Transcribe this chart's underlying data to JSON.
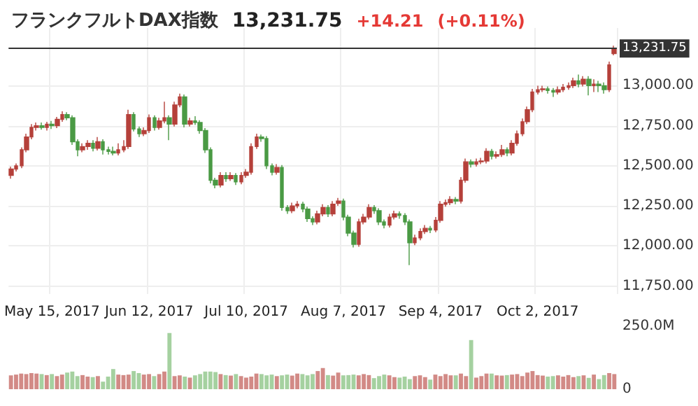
{
  "chart_data": [
    {
      "type": "candlestick",
      "title": "フランクフルトDAX指数",
      "annotations": [
        "13,231.75",
        "+14.21",
        "(+0.11%)"
      ],
      "categories": [
        null,
        null,
        null,
        null,
        null,
        null,
        null,
        null,
        "May 15, 2017",
        null,
        null,
        null,
        null,
        null,
        null,
        null,
        null,
        null,
        null,
        null,
        null,
        null,
        null,
        null,
        null,
        null,
        null,
        "Jun 12, 2017",
        null,
        null,
        null,
        null,
        null,
        null,
        null,
        null,
        null,
        null,
        null,
        null,
        null,
        null,
        null,
        null,
        null,
        null,
        "Jul 10, 2017",
        null,
        null,
        null,
        null,
        null,
        null,
        null,
        null,
        null,
        null,
        null,
        null,
        null,
        null,
        null,
        null,
        null,
        null,
        "Aug 7, 2017",
        null,
        null,
        null,
        null,
        null,
        null,
        null,
        null,
        null,
        null,
        null,
        null,
        null,
        null,
        null,
        null,
        null,
        null,
        "Sep 4, 2017",
        null,
        null,
        null,
        null,
        null,
        null,
        null,
        null,
        null,
        null,
        null,
        null,
        null,
        null,
        null,
        null,
        null,
        null,
        "Oct 2, 2017",
        null,
        null,
        null,
        null,
        null,
        null,
        null,
        null,
        null,
        null,
        null,
        null,
        null,
        null,
        null
      ],
      "ohlc": [
        [
          12440,
          12495,
          12420,
          12480
        ],
        [
          12480,
          12515,
          12465,
          12500
        ],
        [
          12500,
          12615,
          12485,
          12600
        ],
        [
          12600,
          12700,
          12585,
          12680
        ],
        [
          12680,
          12760,
          12665,
          12740
        ],
        [
          12740,
          12770,
          12720,
          12750
        ],
        [
          12750,
          12770,
          12725,
          12740
        ],
        [
          12740,
          12775,
          12720,
          12760
        ],
        [
          12760,
          12780,
          12730,
          12750
        ],
        [
          12750,
          12805,
          12735,
          12790
        ],
        [
          12790,
          12840,
          12775,
          12820
        ],
        [
          12820,
          12835,
          12785,
          12800
        ],
        [
          12800,
          12815,
          12630,
          12650
        ],
        [
          12650,
          12665,
          12560,
          12600
        ],
        [
          12600,
          12640,
          12585,
          12620
        ],
        [
          12620,
          12660,
          12600,
          12640
        ],
        [
          12640,
          12660,
          12590,
          12610
        ],
        [
          12610,
          12680,
          12595,
          12650
        ],
        [
          12650,
          12665,
          12570,
          12600
        ],
        [
          12600,
          12620,
          12570,
          12590
        ],
        [
          12590,
          12620,
          12565,
          12580
        ],
        [
          12580,
          12640,
          12565,
          12600
        ],
        [
          12600,
          12660,
          12585,
          12620
        ],
        [
          12620,
          12850,
          12605,
          12820
        ],
        [
          12820,
          12835,
          12715,
          12730
        ],
        [
          12730,
          12745,
          12680,
          12700
        ],
        [
          12700,
          12740,
          12685,
          12720
        ],
        [
          12720,
          12820,
          12705,
          12800
        ],
        [
          12800,
          12815,
          12720,
          12740
        ],
        [
          12740,
          12800,
          12725,
          12780
        ],
        [
          12780,
          12900,
          12765,
          12800
        ],
        [
          12800,
          12815,
          12660,
          12760
        ],
        [
          12760,
          12900,
          12745,
          12880
        ],
        [
          12880,
          12950,
          12865,
          12930
        ],
        [
          12930,
          12945,
          12740,
          12760
        ],
        [
          12760,
          12800,
          12745,
          12780
        ],
        [
          12780,
          12810,
          12755,
          12770
        ],
        [
          12770,
          12785,
          12700,
          12720
        ],
        [
          12720,
          12735,
          12580,
          12600
        ],
        [
          12600,
          12615,
          12390,
          12410
        ],
        [
          12410,
          12425,
          12360,
          12380
        ],
        [
          12380,
          12460,
          12365,
          12440
        ],
        [
          12440,
          12460,
          12400,
          12420
        ],
        [
          12420,
          12460,
          12405,
          12440
        ],
        [
          12440,
          12455,
          12380,
          12400
        ],
        [
          12400,
          12460,
          12385,
          12440
        ],
        [
          12440,
          12480,
          12425,
          12460
        ],
        [
          12460,
          12640,
          12445,
          12620
        ],
        [
          12620,
          12700,
          12605,
          12680
        ],
        [
          12680,
          12695,
          12650,
          12670
        ],
        [
          12670,
          12685,
          12480,
          12500
        ],
        [
          12500,
          12515,
          12440,
          12460
        ],
        [
          12460,
          12510,
          12445,
          12490
        ],
        [
          12490,
          12505,
          12220,
          12240
        ],
        [
          12240,
          12255,
          12200,
          12220
        ],
        [
          12220,
          12270,
          12205,
          12250
        ],
        [
          12250,
          12280,
          12235,
          12260
        ],
        [
          12260,
          12275,
          12210,
          12230
        ],
        [
          12230,
          12245,
          12150,
          12170
        ],
        [
          12170,
          12185,
          12130,
          12150
        ],
        [
          12150,
          12220,
          12135,
          12200
        ],
        [
          12200,
          12260,
          12185,
          12240
        ],
        [
          12240,
          12255,
          12180,
          12200
        ],
        [
          12200,
          12280,
          12185,
          12260
        ],
        [
          12265,
          12300,
          12250,
          12280
        ],
        [
          12280,
          12295,
          12160,
          12180
        ],
        [
          12180,
          12195,
          12060,
          12080
        ],
        [
          12080,
          12095,
          11990,
          12010
        ],
        [
          12010,
          12170,
          11995,
          12150
        ],
        [
          12150,
          12200,
          12135,
          12180
        ],
        [
          12180,
          12260,
          12165,
          12240
        ],
        [
          12240,
          12255,
          12200,
          12220
        ],
        [
          12220,
          12235,
          12130,
          12150
        ],
        [
          12150,
          12165,
          12110,
          12130
        ],
        [
          12130,
          12200,
          12115,
          12180
        ],
        [
          12180,
          12220,
          12165,
          12200
        ],
        [
          12200,
          12215,
          12170,
          12190
        ],
        [
          12190,
          12205,
          12130,
          12150
        ],
        [
          12150,
          12165,
          11880,
          12020
        ],
        [
          12020,
          12070,
          12005,
          12050
        ],
        [
          12050,
          12110,
          12035,
          12090
        ],
        [
          12090,
          12130,
          12075,
          12110
        ],
        [
          12110,
          12125,
          12080,
          12100
        ],
        [
          12100,
          12180,
          12085,
          12160
        ],
        [
          12160,
          12280,
          12145,
          12260
        ],
        [
          12260,
          12290,
          12245,
          12270
        ],
        [
          12270,
          12310,
          12255,
          12290
        ],
        [
          12290,
          12305,
          12260,
          12280
        ],
        [
          12280,
          12430,
          12265,
          12410
        ],
        [
          12410,
          12545,
          12395,
          12525
        ],
        [
          12525,
          12540,
          12490,
          12510
        ],
        [
          12510,
          12545,
          12495,
          12525
        ],
        [
          12525,
          12550,
          12510,
          12530
        ],
        [
          12530,
          12610,
          12515,
          12590
        ],
        [
          12590,
          12605,
          12540,
          12560
        ],
        [
          12560,
          12590,
          12545,
          12570
        ],
        [
          12570,
          12630,
          12555,
          12600
        ],
        [
          12600,
          12615,
          12560,
          12580
        ],
        [
          12580,
          12660,
          12565,
          12640
        ],
        [
          12640,
          12720,
          12625,
          12700
        ],
        [
          12700,
          12795,
          12685,
          12775
        ],
        [
          12775,
          12870,
          12760,
          12850
        ],
        [
          12850,
          12980,
          12835,
          12960
        ],
        [
          12960,
          13000,
          12945,
          12975
        ],
        [
          12975,
          13000,
          12960,
          12980
        ],
        [
          12980,
          12995,
          12950,
          12970
        ],
        [
          12970,
          12985,
          12930,
          12960
        ],
        [
          12960,
          12995,
          12945,
          12975
        ],
        [
          12975,
          13010,
          12960,
          12990
        ],
        [
          12990,
          13020,
          12975,
          13000
        ],
        [
          13000,
          13050,
          12985,
          13030
        ],
        [
          13030,
          13070,
          12990,
          13010
        ],
        [
          13010,
          13060,
          12995,
          13040
        ],
        [
          13040,
          13060,
          12940,
          13000
        ],
        [
          13000,
          13040,
          12960,
          13010
        ],
        [
          13010,
          13030,
          12960,
          13000
        ],
        [
          13000,
          13020,
          12950,
          12975
        ],
        [
          12975,
          13150,
          12960,
          13130
        ],
        [
          13200,
          13250,
          13190,
          13231.75
        ]
      ],
      "colors": [
        "#b5403a",
        "#b5403a",
        "#b5403a",
        "#b5403a",
        "#b5403a",
        "#b5403a",
        "#4a9a44",
        "#b5403a",
        "#4a9a44",
        "#b5403a",
        "#b5403a",
        "#4a9a44",
        "#4a9a44",
        "#4a9a44",
        "#b5403a",
        "#b5403a",
        "#4a9a44",
        "#b5403a",
        "#4a9a44",
        "#4a9a44",
        "#4a9a44",
        "#b5403a",
        "#b5403a",
        "#b5403a",
        "#4a9a44",
        "#4a9a44",
        "#b5403a",
        "#b5403a",
        "#4a9a44",
        "#b5403a",
        "#b5403a",
        "#4a9a44",
        "#b5403a",
        "#b5403a",
        "#4a9a44",
        "#b5403a",
        "#4a9a44",
        "#4a9a44",
        "#4a9a44",
        "#4a9a44",
        "#4a9a44",
        "#b5403a",
        "#4a9a44",
        "#b5403a",
        "#4a9a44",
        "#b5403a",
        "#b5403a",
        "#b5403a",
        "#b5403a",
        "#4a9a44",
        "#4a9a44",
        "#4a9a44",
        "#b5403a",
        "#4a9a44",
        "#4a9a44",
        "#b5403a",
        "#b5403a",
        "#4a9a44",
        "#4a9a44",
        "#4a9a44",
        "#b5403a",
        "#b5403a",
        "#4a9a44",
        "#b5403a",
        "#b5403a",
        "#4a9a44",
        "#4a9a44",
        "#4a9a44",
        "#b5403a",
        "#b5403a",
        "#b5403a",
        "#4a9a44",
        "#4a9a44",
        "#4a9a44",
        "#b5403a",
        "#b5403a",
        "#4a9a44",
        "#4a9a44",
        "#4a9a44",
        "#b5403a",
        "#b5403a",
        "#b5403a",
        "#4a9a44",
        "#b5403a",
        "#b5403a",
        "#b5403a",
        "#b5403a",
        "#4a9a44",
        "#b5403a",
        "#b5403a",
        "#4a9a44",
        "#b5403a",
        "#b5403a",
        "#b5403a",
        "#4a9a44",
        "#b5403a",
        "#b5403a",
        "#4a9a44",
        "#b5403a",
        "#b5403a",
        "#b5403a",
        "#b5403a",
        "#b5403a",
        "#b5403a",
        "#b5403a",
        "#4a9a44",
        "#4a9a44",
        "#b5403a",
        "#b5403a",
        "#b5403a",
        "#b5403a",
        "#4a9a44",
        "#b5403a",
        "#4a9a44",
        "#b5403a",
        "#4a9a44",
        "#4a9a44",
        "#b5403a",
        "#b5403a"
      ],
      "ylim": [
        11700,
        13360
      ],
      "yticks": [
        {
          "value": 11750,
          "label": "11,750.00"
        },
        {
          "value": 12000,
          "label": "12,000.00"
        },
        {
          "value": 12250,
          "label": "12,250.00"
        },
        {
          "value": 12500,
          "label": "12,500.00"
        },
        {
          "value": 12750,
          "label": "12,750.00"
        },
        {
          "value": 13000,
          "label": "13,000.00"
        }
      ],
      "ref_lines": [
        {
          "axis": "y",
          "value": 13231.75,
          "label": "13,231.75",
          "color": "#333333"
        }
      ],
      "grid": true
    },
    {
      "type": "bar",
      "tick_labels": "y",
      "categories": [
        null,
        null,
        null,
        null,
        null,
        null,
        null,
        null,
        null,
        null,
        null,
        null,
        null,
        null,
        null,
        null,
        null,
        null,
        null,
        null,
        null,
        null,
        null,
        null,
        null,
        null,
        null,
        null,
        null,
        null,
        null,
        null,
        null,
        null,
        null,
        null,
        null,
        null,
        null,
        null,
        null,
        null,
        null,
        null,
        null,
        null,
        null,
        null,
        null,
        null,
        null,
        null,
        null,
        null,
        null,
        null,
        null,
        null,
        null,
        null,
        null,
        null,
        null,
        null,
        null,
        null,
        null,
        null,
        null,
        null,
        null,
        null,
        null,
        null,
        null,
        null,
        null,
        null,
        null,
        null,
        null,
        null,
        null,
        null,
        null,
        null,
        null,
        null,
        null,
        null,
        null,
        null,
        null,
        null,
        null,
        null,
        null,
        null,
        null,
        null,
        null,
        null,
        null,
        null,
        null,
        null,
        null,
        null,
        null,
        null,
        null,
        null,
        null,
        null,
        null,
        null,
        null,
        null,
        null
      ],
      "values": [
        55,
        58,
        62,
        60,
        64,
        62,
        60,
        56,
        60,
        52,
        58,
        66,
        70,
        52,
        56,
        50,
        48,
        52,
        30,
        50,
        80,
        58,
        56,
        58,
        72,
        64,
        58,
        60,
        52,
        60,
        70,
        223,
        52,
        55,
        50,
        46,
        55,
        60,
        70,
        70,
        68,
        60,
        56,
        54,
        60,
        52,
        46,
        50,
        62,
        60,
        55,
        58,
        52,
        55,
        58,
        54,
        62,
        60,
        55,
        60,
        72,
        84,
        56,
        54,
        66,
        55,
        56,
        58,
        55,
        60,
        56,
        44,
        52,
        58,
        55,
        48,
        46,
        50,
        40,
        52,
        55,
        48,
        38,
        58,
        52,
        60,
        55,
        55,
        62,
        52,
        195,
        46,
        52,
        62,
        62,
        55,
        54,
        56,
        58,
        60,
        52,
        66,
        72,
        56,
        54,
        50,
        52,
        55,
        50,
        56,
        48,
        52,
        55,
        45,
        58,
        40,
        56,
        64,
        60
      ],
      "colors": [
        "#d28a86",
        "#d28a86",
        "#d28a86",
        "#d28a86",
        "#d28a86",
        "#d28a86",
        "#a5d1a0",
        "#d28a86",
        "#a5d1a0",
        "#d28a86",
        "#d28a86",
        "#a5d1a0",
        "#a5d1a0",
        "#a5d1a0",
        "#d28a86",
        "#d28a86",
        "#a5d1a0",
        "#d28a86",
        "#a5d1a0",
        "#a5d1a0",
        "#a5d1a0",
        "#d28a86",
        "#d28a86",
        "#d28a86",
        "#a5d1a0",
        "#a5d1a0",
        "#d28a86",
        "#d28a86",
        "#a5d1a0",
        "#d28a86",
        "#d28a86",
        "#a5d1a0",
        "#d28a86",
        "#d28a86",
        "#a5d1a0",
        "#d28a86",
        "#a5d1a0",
        "#a5d1a0",
        "#a5d1a0",
        "#a5d1a0",
        "#a5d1a0",
        "#d28a86",
        "#a5d1a0",
        "#d28a86",
        "#a5d1a0",
        "#d28a86",
        "#d28a86",
        "#d28a86",
        "#d28a86",
        "#a5d1a0",
        "#a5d1a0",
        "#a5d1a0",
        "#d28a86",
        "#a5d1a0",
        "#a5d1a0",
        "#d28a86",
        "#d28a86",
        "#a5d1a0",
        "#a5d1a0",
        "#a5d1a0",
        "#d28a86",
        "#d28a86",
        "#a5d1a0",
        "#d28a86",
        "#d28a86",
        "#a5d1a0",
        "#a5d1a0",
        "#a5d1a0",
        "#d28a86",
        "#d28a86",
        "#d28a86",
        "#a5d1a0",
        "#a5d1a0",
        "#a5d1a0",
        "#d28a86",
        "#d28a86",
        "#a5d1a0",
        "#a5d1a0",
        "#a5d1a0",
        "#d28a86",
        "#d28a86",
        "#d28a86",
        "#a5d1a0",
        "#d28a86",
        "#d28a86",
        "#d28a86",
        "#d28a86",
        "#a5d1a0",
        "#d28a86",
        "#d28a86",
        "#a5d1a0",
        "#d28a86",
        "#d28a86",
        "#d28a86",
        "#a5d1a0",
        "#d28a86",
        "#d28a86",
        "#a5d1a0",
        "#d28a86",
        "#d28a86",
        "#d28a86",
        "#d28a86",
        "#d28a86",
        "#d28a86",
        "#d28a86",
        "#a5d1a0",
        "#a5d1a0",
        "#d28a86",
        "#d28a86",
        "#d28a86",
        "#d28a86",
        "#a5d1a0",
        "#d28a86",
        "#a5d1a0",
        "#d28a86",
        "#a5d1a0",
        "#a5d1a0",
        "#d28a86",
        "#d28a86"
      ],
      "ylim": [
        0,
        250
      ],
      "yticks": [
        {
          "value": 0,
          "label": "0"
        },
        {
          "value": 250,
          "label": "250.0M"
        }
      ],
      "grid": "x"
    }
  ]
}
